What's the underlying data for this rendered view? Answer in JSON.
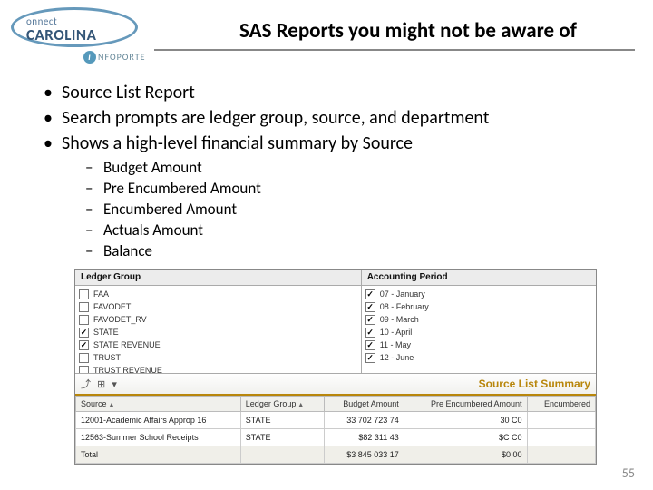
{
  "logo": {
    "top": "onnect",
    "main": "CAROLINA",
    "sub_icon": "i",
    "sub_text": "NFOPORTE"
  },
  "title": "SAS Reports you might not be aware of",
  "bullets": [
    "Source List Report",
    "Search prompts are ledger group, source, and department",
    "Shows a high-level financial summary by Source"
  ],
  "sub_bullets": [
    "Budget Amount",
    "Pre Encumbered Amount",
    "Encumbered Amount",
    "Actuals Amount",
    "Balance"
  ],
  "filters": {
    "ledger_group": {
      "header": "Ledger Group",
      "items": [
        {
          "label": "FAA",
          "checked": false
        },
        {
          "label": "FAVODET",
          "checked": false
        },
        {
          "label": "FAVODET_RV",
          "checked": false
        },
        {
          "label": "STATE",
          "checked": true
        },
        {
          "label": "STATE REVENUE",
          "checked": true
        },
        {
          "label": "TRUST",
          "checked": false
        },
        {
          "label": "TRUST REVENUE",
          "checked": false
        }
      ]
    },
    "accounting_period": {
      "header": "Accounting Period",
      "items": [
        {
          "label": "07 - January",
          "checked": true
        },
        {
          "label": "08 - February",
          "checked": true
        },
        {
          "label": "09 - March",
          "checked": true
        },
        {
          "label": "10 - April",
          "checked": true
        },
        {
          "label": "11 - May",
          "checked": true
        },
        {
          "label": "12 - June",
          "checked": true
        }
      ]
    }
  },
  "summary": {
    "title": "Source List Summary",
    "icons": "⤴ ⊞ ▾"
  },
  "table": {
    "columns": [
      "Source",
      "Ledger Group",
      "Budget Amount",
      "Pre Encumbered Amount",
      "Encumbered"
    ],
    "rows": [
      [
        "12001-Academic Affairs Approp 16",
        "STATE",
        "33 702 723 74",
        "30 C0",
        ""
      ],
      [
        "12563-Summer School Receipts",
        "STATE",
        "$82 311 43",
        "$C C0",
        ""
      ]
    ],
    "total_row": [
      "Total",
      "",
      "$3 845 033 17",
      "$0 00",
      ""
    ]
  },
  "page_number": "55"
}
